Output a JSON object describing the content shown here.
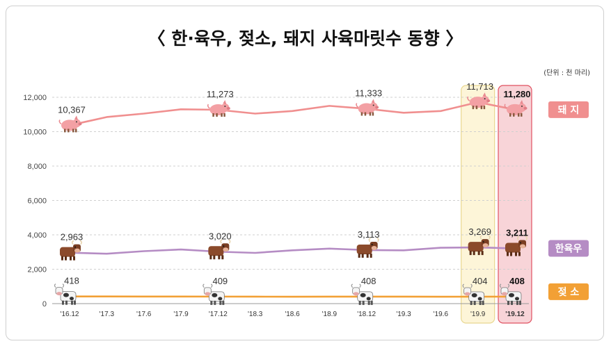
{
  "title": "〈 한·육우, 젖소, 돼지 사육마릿수 동향 〉",
  "unit_note": "(단위 : 천 마리)",
  "colors": {
    "pig_line": "#f08f8f",
    "hanwoo_line": "#b58cc4",
    "dairy_line": "#f2a035",
    "highlight_yellow": "#fdf5d8",
    "highlight_yellow_border": "#e8d790",
    "highlight_red": "#f8d4d8",
    "highlight_red_border": "#e05060",
    "grid": "#cfcfcf"
  },
  "chart_data": {
    "type": "line",
    "title": "〈 한·육우, 젖소, 돼지 사육마릿수 동향 〉",
    "xlabel": "",
    "ylabel": "",
    "ylim": [
      0,
      12000
    ],
    "yticks": [
      "0",
      "2,000",
      "4,000",
      "6,000",
      "8,000",
      "10,000",
      "12,000"
    ],
    "ytick_values": [
      0,
      2000,
      4000,
      6000,
      8000,
      10000,
      12000
    ],
    "grid": true,
    "categories": [
      "'16.12",
      "'17.3",
      "'17.6",
      "'17.9",
      "'17.12",
      "'18.3",
      "'18.6",
      "'18.9",
      "'18.12",
      "'19.3",
      "'19.6",
      "'19.9",
      "'19.12"
    ],
    "highlight_categories": [
      "'19.9",
      "'19.12"
    ],
    "series": [
      {
        "key": "pig",
        "name": "돼 지",
        "legend": "돼  지",
        "icon": "pig-icon",
        "values": [
          10367,
          10850,
          11050,
          11300,
          11273,
          11050,
          11200,
          11500,
          11333,
          11100,
          11200,
          11713,
          11280
        ],
        "labels": [
          {
            "index": 0,
            "text": "10,367"
          },
          {
            "index": 4,
            "text": "11,273"
          },
          {
            "index": 8,
            "text": "11,333"
          },
          {
            "index": 11,
            "text": "11,713"
          },
          {
            "index": 12,
            "text": "11,280",
            "bold": true
          }
        ]
      },
      {
        "key": "hanwoo",
        "name": "한육우",
        "legend": "한육우",
        "icon": "cow-icon",
        "values": [
          2963,
          2900,
          3050,
          3150,
          3020,
          2950,
          3100,
          3200,
          3113,
          3100,
          3250,
          3269,
          3211
        ],
        "labels": [
          {
            "index": 0,
            "text": "2,963"
          },
          {
            "index": 4,
            "text": "3,020"
          },
          {
            "index": 8,
            "text": "3,113"
          },
          {
            "index": 11,
            "text": "3,269"
          },
          {
            "index": 12,
            "text": "3,211",
            "bold": true
          }
        ]
      },
      {
        "key": "dairy",
        "name": "젖 소",
        "legend": "젖    소",
        "icon": "dairy-cow-icon",
        "values": [
          418,
          415,
          410,
          412,
          409,
          405,
          402,
          406,
          408,
          405,
          400,
          404,
          408
        ],
        "labels": [
          {
            "index": 0,
            "text": "418"
          },
          {
            "index": 4,
            "text": "409"
          },
          {
            "index": 8,
            "text": "408"
          },
          {
            "index": 11,
            "text": "404"
          },
          {
            "index": 12,
            "text": "408",
            "bold": true
          }
        ]
      }
    ]
  }
}
